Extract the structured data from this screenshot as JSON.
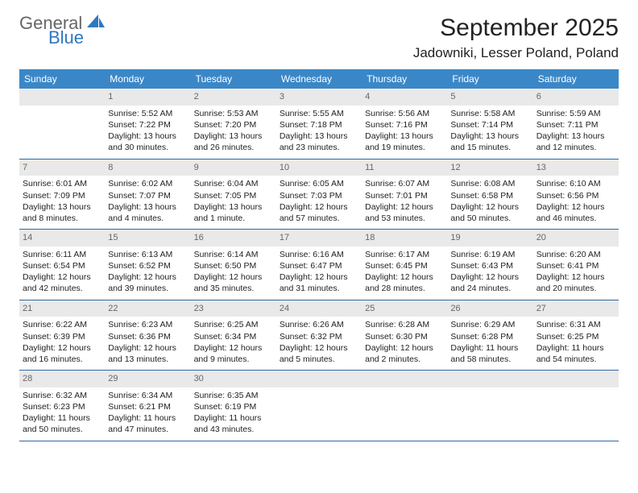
{
  "logo": {
    "text1": "General",
    "text2": "Blue"
  },
  "title": "September 2025",
  "location": "Jadowniki, Lesser Poland, Poland",
  "colors": {
    "header_bg": "#3a87c8",
    "header_text": "#ffffff",
    "daynum_bg": "#e9e9e9",
    "daynum_text": "#666666",
    "rule": "#2f6aa0",
    "body_text": "#222222",
    "logo_gray": "#666666",
    "logo_blue": "#2f78bf"
  },
  "typography": {
    "title_fontsize": 30,
    "location_fontsize": 17,
    "dayhead_fontsize": 12,
    "cell_fontsize": 10.5
  },
  "day_names": [
    "Sunday",
    "Monday",
    "Tuesday",
    "Wednesday",
    "Thursday",
    "Friday",
    "Saturday"
  ],
  "weeks": [
    [
      {
        "n": "",
        "empty": true
      },
      {
        "n": "1",
        "sr": "Sunrise: 5:52 AM",
        "ss": "Sunset: 7:22 PM",
        "dl": "Daylight: 13 hours and 30 minutes."
      },
      {
        "n": "2",
        "sr": "Sunrise: 5:53 AM",
        "ss": "Sunset: 7:20 PM",
        "dl": "Daylight: 13 hours and 26 minutes."
      },
      {
        "n": "3",
        "sr": "Sunrise: 5:55 AM",
        "ss": "Sunset: 7:18 PM",
        "dl": "Daylight: 13 hours and 23 minutes."
      },
      {
        "n": "4",
        "sr": "Sunrise: 5:56 AM",
        "ss": "Sunset: 7:16 PM",
        "dl": "Daylight: 13 hours and 19 minutes."
      },
      {
        "n": "5",
        "sr": "Sunrise: 5:58 AM",
        "ss": "Sunset: 7:14 PM",
        "dl": "Daylight: 13 hours and 15 minutes."
      },
      {
        "n": "6",
        "sr": "Sunrise: 5:59 AM",
        "ss": "Sunset: 7:11 PM",
        "dl": "Daylight: 13 hours and 12 minutes."
      }
    ],
    [
      {
        "n": "7",
        "sr": "Sunrise: 6:01 AM",
        "ss": "Sunset: 7:09 PM",
        "dl": "Daylight: 13 hours and 8 minutes."
      },
      {
        "n": "8",
        "sr": "Sunrise: 6:02 AM",
        "ss": "Sunset: 7:07 PM",
        "dl": "Daylight: 13 hours and 4 minutes."
      },
      {
        "n": "9",
        "sr": "Sunrise: 6:04 AM",
        "ss": "Sunset: 7:05 PM",
        "dl": "Daylight: 13 hours and 1 minute."
      },
      {
        "n": "10",
        "sr": "Sunrise: 6:05 AM",
        "ss": "Sunset: 7:03 PM",
        "dl": "Daylight: 12 hours and 57 minutes."
      },
      {
        "n": "11",
        "sr": "Sunrise: 6:07 AM",
        "ss": "Sunset: 7:01 PM",
        "dl": "Daylight: 12 hours and 53 minutes."
      },
      {
        "n": "12",
        "sr": "Sunrise: 6:08 AM",
        "ss": "Sunset: 6:58 PM",
        "dl": "Daylight: 12 hours and 50 minutes."
      },
      {
        "n": "13",
        "sr": "Sunrise: 6:10 AM",
        "ss": "Sunset: 6:56 PM",
        "dl": "Daylight: 12 hours and 46 minutes."
      }
    ],
    [
      {
        "n": "14",
        "sr": "Sunrise: 6:11 AM",
        "ss": "Sunset: 6:54 PM",
        "dl": "Daylight: 12 hours and 42 minutes."
      },
      {
        "n": "15",
        "sr": "Sunrise: 6:13 AM",
        "ss": "Sunset: 6:52 PM",
        "dl": "Daylight: 12 hours and 39 minutes."
      },
      {
        "n": "16",
        "sr": "Sunrise: 6:14 AM",
        "ss": "Sunset: 6:50 PM",
        "dl": "Daylight: 12 hours and 35 minutes."
      },
      {
        "n": "17",
        "sr": "Sunrise: 6:16 AM",
        "ss": "Sunset: 6:47 PM",
        "dl": "Daylight: 12 hours and 31 minutes."
      },
      {
        "n": "18",
        "sr": "Sunrise: 6:17 AM",
        "ss": "Sunset: 6:45 PM",
        "dl": "Daylight: 12 hours and 28 minutes."
      },
      {
        "n": "19",
        "sr": "Sunrise: 6:19 AM",
        "ss": "Sunset: 6:43 PM",
        "dl": "Daylight: 12 hours and 24 minutes."
      },
      {
        "n": "20",
        "sr": "Sunrise: 6:20 AM",
        "ss": "Sunset: 6:41 PM",
        "dl": "Daylight: 12 hours and 20 minutes."
      }
    ],
    [
      {
        "n": "21",
        "sr": "Sunrise: 6:22 AM",
        "ss": "Sunset: 6:39 PM",
        "dl": "Daylight: 12 hours and 16 minutes."
      },
      {
        "n": "22",
        "sr": "Sunrise: 6:23 AM",
        "ss": "Sunset: 6:36 PM",
        "dl": "Daylight: 12 hours and 13 minutes."
      },
      {
        "n": "23",
        "sr": "Sunrise: 6:25 AM",
        "ss": "Sunset: 6:34 PM",
        "dl": "Daylight: 12 hours and 9 minutes."
      },
      {
        "n": "24",
        "sr": "Sunrise: 6:26 AM",
        "ss": "Sunset: 6:32 PM",
        "dl": "Daylight: 12 hours and 5 minutes."
      },
      {
        "n": "25",
        "sr": "Sunrise: 6:28 AM",
        "ss": "Sunset: 6:30 PM",
        "dl": "Daylight: 12 hours and 2 minutes."
      },
      {
        "n": "26",
        "sr": "Sunrise: 6:29 AM",
        "ss": "Sunset: 6:28 PM",
        "dl": "Daylight: 11 hours and 58 minutes."
      },
      {
        "n": "27",
        "sr": "Sunrise: 6:31 AM",
        "ss": "Sunset: 6:25 PM",
        "dl": "Daylight: 11 hours and 54 minutes."
      }
    ],
    [
      {
        "n": "28",
        "sr": "Sunrise: 6:32 AM",
        "ss": "Sunset: 6:23 PM",
        "dl": "Daylight: 11 hours and 50 minutes."
      },
      {
        "n": "29",
        "sr": "Sunrise: 6:34 AM",
        "ss": "Sunset: 6:21 PM",
        "dl": "Daylight: 11 hours and 47 minutes."
      },
      {
        "n": "30",
        "sr": "Sunrise: 6:35 AM",
        "ss": "Sunset: 6:19 PM",
        "dl": "Daylight: 11 hours and 43 minutes."
      },
      {
        "n": "",
        "empty": true
      },
      {
        "n": "",
        "empty": true
      },
      {
        "n": "",
        "empty": true
      },
      {
        "n": "",
        "empty": true
      }
    ]
  ]
}
